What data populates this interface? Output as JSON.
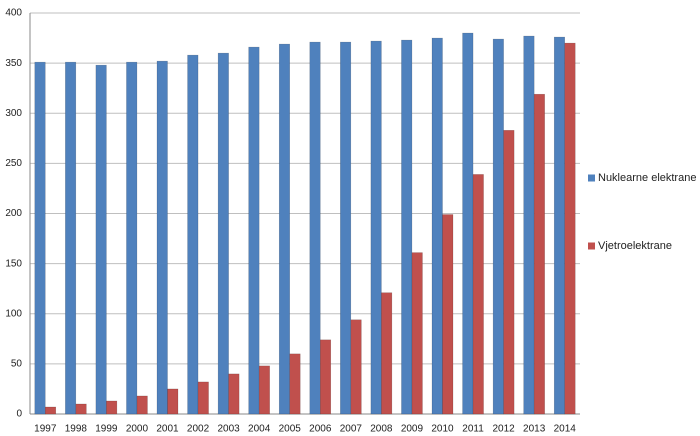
{
  "chart_data": {
    "type": "bar",
    "categories": [
      "1997",
      "1998",
      "1999",
      "2000",
      "2001",
      "2002",
      "2003",
      "2004",
      "2005",
      "2006",
      "2007",
      "2008",
      "2009",
      "2010",
      "2011",
      "2012",
      "2013",
      "2014"
    ],
    "series": [
      {
        "name": "Nuklearne elektrane",
        "color": "#4f81bd",
        "values": [
          351,
          351,
          348,
          351,
          352,
          358,
          360,
          366,
          369,
          371,
          371,
          372,
          373,
          375,
          380,
          374,
          377,
          376
        ]
      },
      {
        "name": "Vjetroelektrane",
        "color": "#c0504d",
        "values": [
          7,
          10,
          13,
          18,
          25,
          32,
          40,
          48,
          60,
          74,
          94,
          121,
          161,
          199,
          239,
          283,
          319,
          370
        ]
      }
    ],
    "ylim": [
      0,
      400
    ],
    "yticks": [
      0,
      50,
      100,
      150,
      200,
      250,
      300,
      350,
      400
    ],
    "grid": true,
    "legend": "right"
  }
}
